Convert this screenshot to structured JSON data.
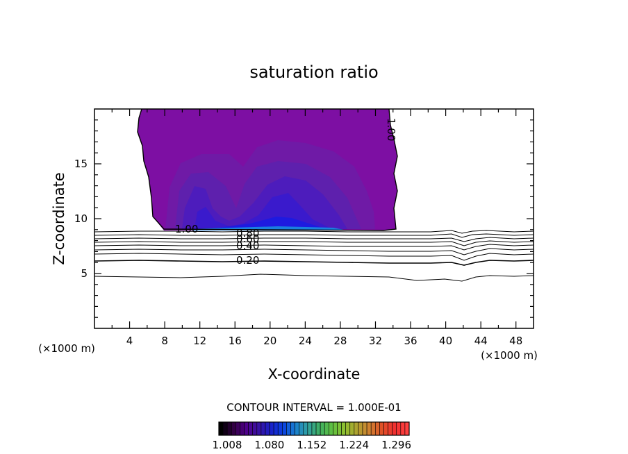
{
  "chart_data": {
    "type": "contour",
    "title": "saturation ratio",
    "xlabel": "X-coordinate",
    "ylabel": "Z-coordinate",
    "x_unit": "(×1000 m)",
    "z_unit": "(×1000 m)",
    "xlim": [
      0,
      50
    ],
    "ylim": [
      0,
      20
    ],
    "x_ticks": [
      4,
      8,
      12,
      16,
      20,
      24,
      28,
      32,
      36,
      40,
      44,
      48
    ],
    "y_ticks": [
      5,
      10,
      15
    ],
    "contour_interval_label": "CONTOUR INTERVAL = 1.000E-01",
    "contour_line_labels": [
      {
        "text": "1.00",
        "x": 33.4,
        "z": 17.9
      },
      {
        "text": "1.00",
        "x": 10.6,
        "z": 9.0
      },
      {
        "text": "0.80",
        "x": 17.8,
        "z": 8.6
      },
      {
        "text": "0.60",
        "x": 17.8,
        "z": 8.1
      },
      {
        "text": "0.40",
        "x": 17.8,
        "z": 7.5
      },
      {
        "text": "0.20",
        "x": 17.8,
        "z": 6.1
      }
    ],
    "contour_levels_below_cloud": [
      0.1,
      0.2,
      0.3,
      0.4,
      0.5,
      0.6,
      0.7,
      0.8,
      0.9
    ],
    "colorbar": {
      "labels": [
        "1.008",
        "1.080",
        "1.152",
        "1.224",
        "1.296"
      ],
      "range": [
        1.008,
        1.332
      ],
      "colors": [
        "#000000",
        "#300040",
        "#50008a",
        "#3a10a0",
        "#1a20c8",
        "#0a40e0",
        "#1a7fd0",
        "#30a0a0",
        "#40b060",
        "#60c040",
        "#90c030",
        "#b0a030",
        "#d08030",
        "#e05028",
        "#f03030",
        "#ff4040"
      ]
    },
    "cloud_fill_levels": [
      {
        "level": 1.008,
        "color": "#7d0fa3"
      },
      {
        "level": 1.02,
        "color": "#6f1aa6"
      },
      {
        "level": 1.04,
        "color": "#5e20ad"
      },
      {
        "level": 1.06,
        "color": "#4d1cbc"
      },
      {
        "level": 1.08,
        "color": "#3a1acc"
      },
      {
        "level": 1.1,
        "color": "#1e1ae0"
      }
    ]
  }
}
